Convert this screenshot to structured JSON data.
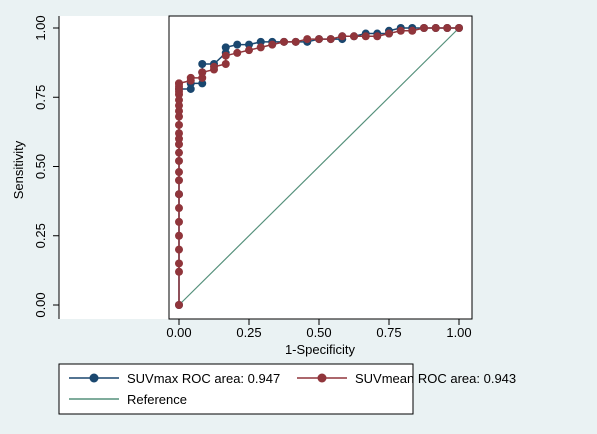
{
  "chart_data": {
    "type": "line",
    "title": "",
    "xlabel": "1-Specificity",
    "ylabel": "Sensitivity",
    "xlim": [
      0,
      1
    ],
    "ylim": [
      0,
      1
    ],
    "x_ticks": [
      "0.00",
      "0.25",
      "0.50",
      "0.75",
      "1.00"
    ],
    "y_ticks": [
      "0.00",
      "0.25",
      "0.50",
      "0.75",
      "1.00"
    ],
    "grid": false,
    "legend_position": "bottom",
    "series": [
      {
        "name": "SUVmax ROC area: 0.947",
        "color": "#1a476f",
        "x": [
          0,
          0,
          0,
          0.042,
          0.042,
          0.083,
          0.083,
          0.083,
          0.125,
          0.167,
          0.167,
          0.208,
          0.25,
          0.292,
          0.333,
          0.375,
          0.417,
          0.458,
          0.5,
          0.542,
          0.583,
          0.583,
          0.625,
          0.667,
          0.708,
          0.75,
          0.75,
          0.792,
          0.833,
          0.875,
          0.917,
          0.958,
          1.0
        ],
        "y": [
          0,
          0.4,
          0.78,
          0.78,
          0.8,
          0.8,
          0.84,
          0.87,
          0.87,
          0.91,
          0.93,
          0.94,
          0.94,
          0.95,
          0.95,
          0.95,
          0.95,
          0.95,
          0.96,
          0.96,
          0.96,
          0.97,
          0.97,
          0.98,
          0.98,
          0.98,
          0.99,
          1.0,
          1.0,
          1.0,
          1.0,
          1.0,
          1.0
        ]
      },
      {
        "name": "SUVmean ROC area: 0.943",
        "color": "#90353b",
        "x": [
          0,
          0,
          0,
          0,
          0,
          0,
          0,
          0,
          0,
          0,
          0,
          0,
          0,
          0,
          0,
          0,
          0,
          0,
          0,
          0,
          0,
          0,
          0,
          0,
          0,
          0,
          0.042,
          0.042,
          0.083,
          0.083,
          0.125,
          0.125,
          0.167,
          0.167,
          0.208,
          0.25,
          0.292,
          0.333,
          0.375,
          0.417,
          0.458,
          0.5,
          0.542,
          0.583,
          0.625,
          0.667,
          0.708,
          0.75,
          0.792,
          0.833,
          0.875,
          0.917,
          0.958,
          1.0
        ],
        "y": [
          0,
          0.12,
          0.15,
          0.2,
          0.25,
          0.3,
          0.35,
          0.4,
          0.45,
          0.48,
          0.52,
          0.55,
          0.58,
          0.6,
          0.62,
          0.65,
          0.68,
          0.7,
          0.72,
          0.74,
          0.76,
          0.77,
          0.78,
          0.79,
          0.8,
          0.8,
          0.81,
          0.82,
          0.82,
          0.84,
          0.85,
          0.86,
          0.87,
          0.9,
          0.91,
          0.92,
          0.93,
          0.94,
          0.95,
          0.95,
          0.96,
          0.96,
          0.96,
          0.97,
          0.97,
          0.97,
          0.97,
          0.98,
          0.99,
          0.99,
          1.0,
          1.0,
          1.0,
          1.0
        ]
      },
      {
        "name": "Reference",
        "color": "#55907b",
        "x": [
          0,
          1
        ],
        "y": [
          0,
          1
        ]
      }
    ]
  }
}
